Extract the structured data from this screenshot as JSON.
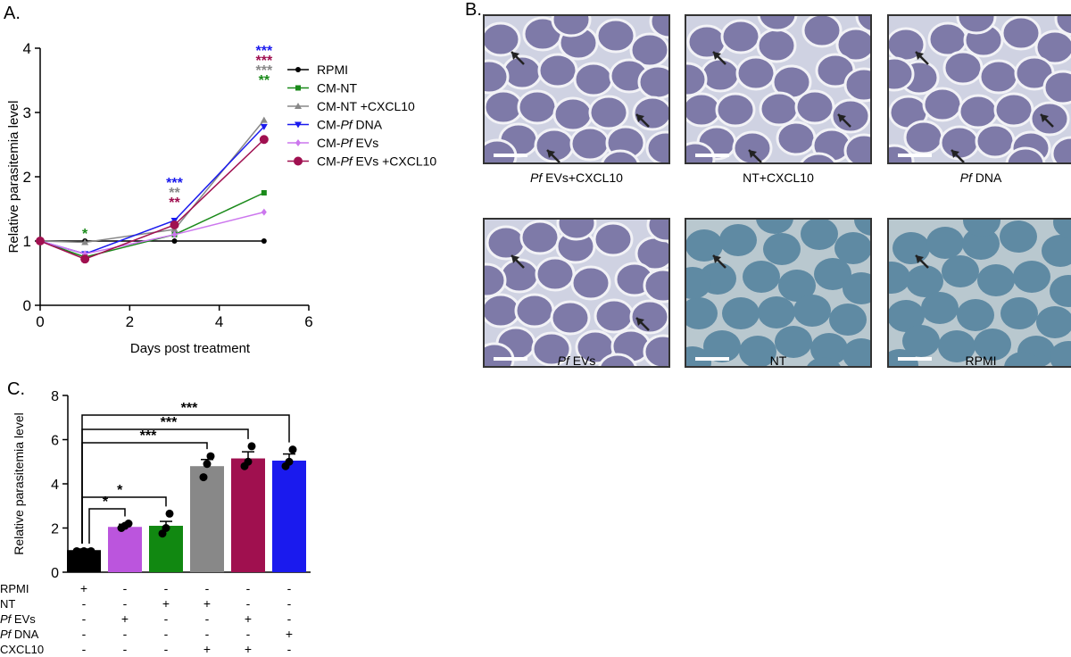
{
  "panels": {
    "a_label": "A.",
    "b_label": "B.",
    "c_label": "C."
  },
  "chart_data": [
    {
      "id": "A",
      "type": "line",
      "xlabel": "Days post treatment",
      "ylabel": "Relative parasitemia level",
      "xlim": [
        0,
        6
      ],
      "ylim": [
        0,
        4
      ],
      "xticks": [
        0,
        2,
        4,
        6
      ],
      "yticks": [
        0,
        1,
        2,
        3,
        4
      ],
      "x": [
        0,
        1,
        3,
        5
      ],
      "legend_position": "right",
      "series": [
        {
          "name": "RPMI",
          "color": "#000000",
          "marker": "circle",
          "values": [
            1.0,
            1.0,
            1.0,
            1.0
          ]
        },
        {
          "name": "CM-NT",
          "color": "#1a8a1a",
          "marker": "square",
          "values": [
            1.0,
            0.75,
            1.1,
            1.75
          ]
        },
        {
          "name": "CM-NT +CXCL10",
          "color": "#888888",
          "marker": "triangle",
          "values": [
            1.0,
            0.98,
            1.18,
            2.88
          ]
        },
        {
          "name": "CM-Pf DNA",
          "color": "#1a1aee",
          "marker": "triangle-down",
          "values": [
            1.0,
            0.8,
            1.32,
            2.78
          ]
        },
        {
          "name": "CM-Pf EVs",
          "color": "#cc77ee",
          "marker": "diamond",
          "values": [
            1.0,
            0.8,
            1.1,
            1.45
          ]
        },
        {
          "name": "CM-Pf EVs +CXCL10",
          "color": "#a01050",
          "marker": "big-circle",
          "values": [
            1.0,
            0.72,
            1.25,
            2.58
          ]
        }
      ],
      "annotations": [
        {
          "x": 1,
          "lines": [
            {
              "text": "*",
              "color": "#1a8a1a"
            }
          ]
        },
        {
          "x": 3,
          "lines": [
            {
              "text": "***",
              "color": "#1a1aee"
            },
            {
              "text": "**",
              "color": "#888888"
            },
            {
              "text": "**",
              "color": "#a01050"
            }
          ]
        },
        {
          "x": 5,
          "lines": [
            {
              "text": "***",
              "color": "#1a1aee"
            },
            {
              "text": "***",
              "color": "#a01050"
            },
            {
              "text": "***",
              "color": "#888888"
            },
            {
              "text": "**",
              "color": "#1a8a1a"
            }
          ]
        }
      ]
    },
    {
      "id": "C",
      "type": "bar",
      "ylabel": "Relative  parasitemia level",
      "ylim": [
        0,
        8
      ],
      "yticks": [
        0,
        2,
        4,
        6,
        8
      ],
      "bar_colors": [
        "#000000",
        "#bb55dd",
        "#118811",
        "#888888",
        "#a0104f",
        "#1a1aee"
      ],
      "values": [
        1.0,
        2.05,
        2.1,
        4.8,
        5.15,
        5.05
      ],
      "errors": [
        0.05,
        0.12,
        0.2,
        0.3,
        0.3,
        0.3
      ],
      "points": [
        [
          0.95,
          0.95,
          0.95
        ],
        [
          2.0,
          2.1,
          2.2
        ],
        [
          1.75,
          2.0,
          2.65
        ],
        [
          4.3,
          4.9,
          5.25
        ],
        [
          4.8,
          5.0,
          5.7
        ],
        [
          4.8,
          5.0,
          5.55
        ]
      ],
      "row_labels": [
        "RPMI",
        "NT",
        "Pf  EVs",
        "Pf DNA",
        "CXCL10"
      ],
      "row_labels_italic_prefix": [
        "",
        "",
        "Pf",
        "Pf",
        ""
      ],
      "row_labels_rest": [
        "RPMI",
        "NT",
        "  EVs",
        " DNA",
        "CXCL10"
      ],
      "table": [
        [
          "+",
          "-",
          "-",
          "-",
          "-",
          "-"
        ],
        [
          "-",
          "-",
          "+",
          "+",
          "-",
          "-"
        ],
        [
          "-",
          "+",
          "-",
          "-",
          "+",
          "-"
        ],
        [
          "-",
          "-",
          "-",
          "-",
          "-",
          "+"
        ],
        [
          "-",
          "-",
          "-",
          "+",
          "+",
          "-"
        ]
      ],
      "significance": [
        {
          "from": 0,
          "to": 1,
          "label": "*"
        },
        {
          "from": 0,
          "to": 2,
          "label": "*"
        },
        {
          "from": 0,
          "to": 3,
          "label": "***"
        },
        {
          "from": 0,
          "to": 4,
          "label": "***"
        },
        {
          "from": 0,
          "to": 5,
          "label": "***"
        }
      ]
    }
  ],
  "micrographs": [
    {
      "caption_italic": "Pf",
      "caption": " EVs+CXCL10",
      "stain": "purple"
    },
    {
      "caption_italic": "",
      "caption": "NT+CXCL10",
      "stain": "purple"
    },
    {
      "caption_italic": "Pf",
      "caption": " DNA",
      "stain": "purple"
    },
    {
      "caption_italic": "Pf",
      "caption": " EVs",
      "stain": "purple"
    },
    {
      "caption_italic": "",
      "caption": "NT",
      "stain": "blue"
    },
    {
      "caption_italic": "",
      "caption": "RPMI",
      "stain": "blue"
    }
  ],
  "colors": {
    "purple_cell": "#7e7aa8",
    "purple_bg": "#cfd2e2",
    "blue_cell": "#5f8aa3",
    "blue_bg": "#b9c8cf"
  }
}
